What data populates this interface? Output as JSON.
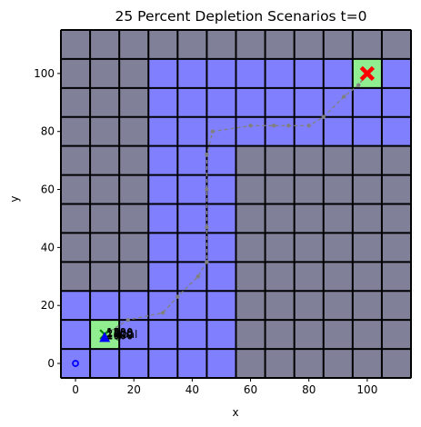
{
  "chart_data": {
    "type": "scatter",
    "title": "25 Percent Depletion Scenarios t=0",
    "xlabel": "x",
    "ylabel": "y",
    "xlim": [
      -5,
      115
    ],
    "ylim": [
      -5,
      115
    ],
    "x_ticks": [
      0,
      20,
      40,
      60,
      80,
      100
    ],
    "y_ticks": [
      0,
      20,
      40,
      60,
      80,
      100
    ],
    "grid": {
      "cell_size": 10,
      "columns": [
        -5,
        5,
        15,
        25,
        35,
        45,
        55,
        65,
        75,
        85,
        95,
        105
      ],
      "rows": [
        -5,
        5,
        15,
        25,
        35,
        45,
        55,
        65,
        75,
        85,
        95,
        105
      ],
      "color_depleted": "#808099",
      "color_available": "#8080ff",
      "color_goal": "#90ee90",
      "color_lines": "#000000",
      "available_cells": [
        [
          -5,
          -5
        ],
        [
          5,
          -5
        ],
        [
          15,
          -5
        ],
        [
          25,
          -5
        ],
        [
          35,
          -5
        ],
        [
          45,
          -5
        ],
        [
          -5,
          5
        ],
        [
          5,
          5
        ],
        [
          15,
          5
        ],
        [
          25,
          5
        ],
        [
          35,
          5
        ],
        [
          45,
          5
        ],
        [
          -5,
          15
        ],
        [
          5,
          15
        ],
        [
          15,
          15
        ],
        [
          25,
          15
        ],
        [
          35,
          15
        ],
        [
          45,
          15
        ],
        [
          25,
          25
        ],
        [
          35,
          25
        ],
        [
          45,
          25
        ],
        [
          25,
          35
        ],
        [
          35,
          35
        ],
        [
          45,
          35
        ],
        [
          25,
          45
        ],
        [
          35,
          45
        ],
        [
          45,
          45
        ],
        [
          25,
          55
        ],
        [
          35,
          55
        ],
        [
          45,
          55
        ],
        [
          25,
          65
        ],
        [
          35,
          65
        ],
        [
          45,
          65
        ],
        [
          25,
          75
        ],
        [
          35,
          75
        ],
        [
          45,
          75
        ],
        [
          55,
          75
        ],
        [
          65,
          75
        ],
        [
          75,
          75
        ],
        [
          85,
          75
        ],
        [
          95,
          75
        ],
        [
          105,
          75
        ],
        [
          25,
          85
        ],
        [
          35,
          85
        ],
        [
          45,
          85
        ],
        [
          55,
          85
        ],
        [
          65,
          85
        ],
        [
          75,
          85
        ],
        [
          85,
          85
        ],
        [
          95,
          85
        ],
        [
          105,
          85
        ],
        [
          25,
          95
        ],
        [
          35,
          95
        ],
        [
          45,
          95
        ],
        [
          55,
          95
        ],
        [
          65,
          95
        ],
        [
          75,
          95
        ],
        [
          85,
          95
        ],
        [
          105,
          95
        ]
      ],
      "goal_cells": [
        [
          5,
          5
        ],
        [
          95,
          95
        ]
      ]
    },
    "series": [
      {
        "marker": "dashed-path",
        "color": "#808080",
        "points": [
          [
            10,
            10
          ],
          [
            18,
            15
          ],
          [
            30,
            17.5
          ],
          [
            35,
            23
          ],
          [
            42,
            30
          ],
          [
            45,
            35
          ],
          [
            45,
            47
          ],
          [
            45,
            60
          ],
          [
            45,
            72
          ],
          [
            47,
            80
          ],
          [
            60,
            82
          ],
          [
            68,
            82
          ],
          [
            73,
            82
          ],
          [
            80,
            82
          ],
          [
            85,
            85
          ],
          [
            92,
            92
          ],
          [
            97,
            96
          ],
          [
            100,
            100
          ]
        ]
      },
      {
        "marker": "open-circle",
        "color": "#0000ff",
        "points": [
          [
            0,
            0
          ]
        ]
      },
      {
        "marker": "x",
        "color": "#008000",
        "points": [
          [
            10,
            10
          ]
        ]
      },
      {
        "marker": "triangle-up",
        "color": "#0000ff",
        "points": [
          [
            10,
            9
          ]
        ]
      },
      {
        "marker": "x-filled",
        "color": "#ff0000",
        "points": [
          [
            100,
            100
          ]
        ]
      }
    ],
    "annotations": [
      {
        "text": "goal",
        "x": 13,
        "y": 10
      },
      {
        "text": "2300",
        "x": 10,
        "y": 10.3
      },
      {
        "text": "1250",
        "x": 10,
        "y": 10.6
      },
      {
        "text": "1800",
        "x": 10,
        "y": 9.9
      },
      {
        "text": "1500",
        "x": 10,
        "y": 10.8
      },
      {
        "text": "1900",
        "x": 10,
        "y": 9.6
      }
    ]
  }
}
